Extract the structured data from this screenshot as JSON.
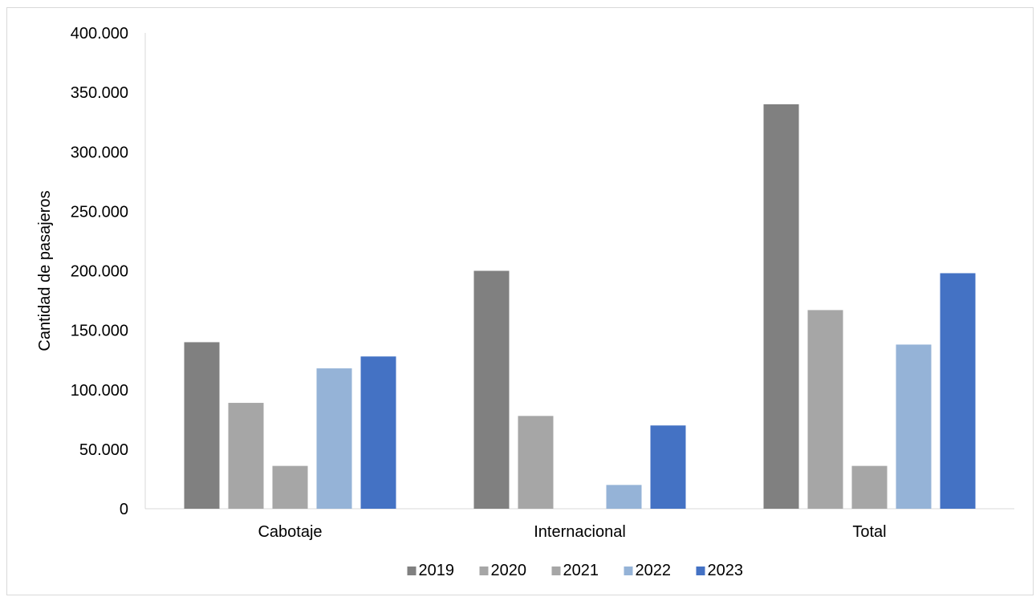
{
  "chart_data": {
    "type": "bar",
    "ylabel": "Cantidad de pasajeros",
    "xlabel": "",
    "title": "",
    "categories": [
      "Cabotaje",
      "Internacional",
      "Total"
    ],
    "ylim": [
      0,
      400000
    ],
    "yticks": [
      0,
      50000,
      100000,
      150000,
      200000,
      250000,
      300000,
      350000,
      400000
    ],
    "ytick_labels": [
      "0",
      "50.000",
      "100.000",
      "150.000",
      "200.000",
      "250.000",
      "300.000",
      "350.000",
      "400.000"
    ],
    "grid": false,
    "legend_position": "bottom",
    "series": [
      {
        "name": "2019",
        "color": "#808080",
        "values": [
          140000,
          200000,
          340000
        ]
      },
      {
        "name": "2020",
        "color": "#a6a6a6",
        "values": [
          89000,
          78000,
          167000
        ]
      },
      {
        "name": "2021",
        "color": "#a6a6a6",
        "values": [
          36000,
          0,
          36000
        ]
      },
      {
        "name": "2022",
        "color": "#95b3d7",
        "values": [
          118000,
          20000,
          138000
        ]
      },
      {
        "name": "2023",
        "color": "#4472c4",
        "values": [
          128000,
          70000,
          198000
        ]
      }
    ]
  }
}
